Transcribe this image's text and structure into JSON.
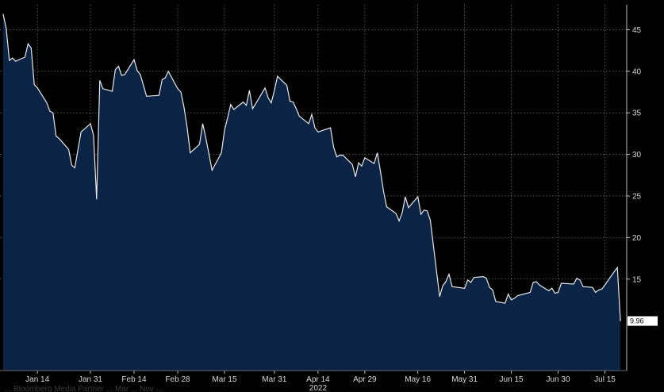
{
  "chart_data": {
    "type": "area",
    "colors": {
      "background": "#000000",
      "fill": "#0b2344",
      "line": "#e8e8e8",
      "grid": "#8c8c8c",
      "label_box": "#ffffff"
    },
    "grid": true,
    "y_axis_side": "right",
    "ylim": [
      4,
      48
    ],
    "y_ticks": [
      "15",
      "20",
      "25",
      "30",
      "35",
      "40",
      "45"
    ],
    "xlim": [
      "2022-01-02",
      "2022-07-22"
    ],
    "x_ticks": [
      {
        "date": "2022-01-14",
        "label": "Jan 14"
      },
      {
        "date": "2022-01-31",
        "label": "Jan 31"
      },
      {
        "date": "2022-02-14",
        "label": "Feb 14"
      },
      {
        "date": "2022-02-28",
        "label": "Feb 28"
      },
      {
        "date": "2022-03-15",
        "label": "Mar 15"
      },
      {
        "date": "2022-03-31",
        "label": "Mar 31"
      },
      {
        "date": "2022-04-14",
        "label": "Apr 14"
      },
      {
        "date": "2022-04-29",
        "label": "Apr 29"
      },
      {
        "date": "2022-05-16",
        "label": "May 16"
      },
      {
        "date": "2022-05-31",
        "label": "May 31"
      },
      {
        "date": "2022-06-15",
        "label": "Jun 15"
      },
      {
        "date": "2022-06-30",
        "label": "Jun 30"
      },
      {
        "date": "2022-07-15",
        "label": "Jul 15"
      }
    ],
    "year_label": "2022",
    "last_value_label": "9.96",
    "footer_caption": "... Bloomberg Media Partner ... Mar ... Nov ...",
    "series": [
      {
        "points": [
          [
            "2022-01-03",
            46.9
          ],
          [
            "2022-01-04",
            45.1
          ],
          [
            "2022-01-05",
            41.3
          ],
          [
            "2022-01-06",
            41.6
          ],
          [
            "2022-01-07",
            41.2
          ],
          [
            "2022-01-10",
            41.7
          ],
          [
            "2022-01-11",
            43.3
          ],
          [
            "2022-01-12",
            42.8
          ],
          [
            "2022-01-13",
            38.4
          ],
          [
            "2022-01-14",
            38.0
          ],
          [
            "2022-01-17",
            36.2
          ],
          [
            "2022-01-18",
            35.2
          ],
          [
            "2022-01-19",
            35.0
          ],
          [
            "2022-01-20",
            32.2
          ],
          [
            "2022-01-21",
            31.9
          ],
          [
            "2022-01-24",
            30.6
          ],
          [
            "2022-01-25",
            28.7
          ],
          [
            "2022-01-26",
            28.4
          ],
          [
            "2022-01-27",
            30.6
          ],
          [
            "2022-01-28",
            32.7
          ],
          [
            "2022-01-31",
            33.7
          ],
          [
            "2022-02-01",
            32.3
          ],
          [
            "2022-02-02",
            24.6
          ],
          [
            "2022-02-03",
            38.9
          ],
          [
            "2022-02-04",
            37.9
          ],
          [
            "2022-02-07",
            37.6
          ],
          [
            "2022-02-08",
            40.2
          ],
          [
            "2022-02-09",
            40.6
          ],
          [
            "2022-02-10",
            39.5
          ],
          [
            "2022-02-11",
            39.6
          ],
          [
            "2022-02-14",
            41.4
          ],
          [
            "2022-02-15",
            40.1
          ],
          [
            "2022-02-16",
            39.6
          ],
          [
            "2022-02-17",
            38.3
          ],
          [
            "2022-02-18",
            37.0
          ],
          [
            "2022-02-22",
            37.1
          ],
          [
            "2022-02-23",
            39.0
          ],
          [
            "2022-02-24",
            39.2
          ],
          [
            "2022-02-25",
            40.0
          ],
          [
            "2022-02-28",
            37.9
          ],
          [
            "2022-03-01",
            37.5
          ],
          [
            "2022-03-02",
            35.7
          ],
          [
            "2022-03-03",
            33.3
          ],
          [
            "2022-03-04",
            30.2
          ],
          [
            "2022-03-07",
            31.2
          ],
          [
            "2022-03-08",
            33.7
          ],
          [
            "2022-03-09",
            32.0
          ],
          [
            "2022-03-10",
            30.1
          ],
          [
            "2022-03-11",
            28.1
          ],
          [
            "2022-03-14",
            30.2
          ],
          [
            "2022-03-15",
            32.9
          ],
          [
            "2022-03-16",
            34.4
          ],
          [
            "2022-03-17",
            36.0
          ],
          [
            "2022-03-18",
            35.4
          ],
          [
            "2022-03-21",
            36.3
          ],
          [
            "2022-03-22",
            35.9
          ],
          [
            "2022-03-23",
            37.7
          ],
          [
            "2022-03-24",
            35.5
          ],
          [
            "2022-03-25",
            36.1
          ],
          [
            "2022-03-28",
            38.0
          ],
          [
            "2022-03-29",
            36.8
          ],
          [
            "2022-03-30",
            36.2
          ],
          [
            "2022-03-31",
            37.7
          ],
          [
            "2022-04-01",
            39.4
          ],
          [
            "2022-04-04",
            38.3
          ],
          [
            "2022-04-05",
            36.4
          ],
          [
            "2022-04-06",
            36.3
          ],
          [
            "2022-04-07",
            35.5
          ],
          [
            "2022-04-08",
            34.6
          ],
          [
            "2022-04-11",
            33.7
          ],
          [
            "2022-04-12",
            34.8
          ],
          [
            "2022-04-13",
            33.2
          ],
          [
            "2022-04-14",
            32.7
          ],
          [
            "2022-04-18",
            33.2
          ],
          [
            "2022-04-19",
            30.9
          ],
          [
            "2022-04-20",
            29.7
          ],
          [
            "2022-04-21",
            29.9
          ],
          [
            "2022-04-22",
            29.9
          ],
          [
            "2022-04-25",
            28.8
          ],
          [
            "2022-04-26",
            27.3
          ],
          [
            "2022-04-27",
            29.0
          ],
          [
            "2022-04-28",
            28.6
          ],
          [
            "2022-04-29",
            29.6
          ],
          [
            "2022-05-02",
            28.9
          ],
          [
            "2022-05-03",
            30.2
          ],
          [
            "2022-05-04",
            28.0
          ],
          [
            "2022-05-05",
            25.6
          ],
          [
            "2022-05-06",
            23.7
          ],
          [
            "2022-05-09",
            22.9
          ],
          [
            "2022-05-10",
            22.0
          ],
          [
            "2022-05-11",
            23.0
          ],
          [
            "2022-05-12",
            24.9
          ],
          [
            "2022-05-13",
            23.6
          ],
          [
            "2022-05-16",
            24.9
          ],
          [
            "2022-05-17",
            22.8
          ],
          [
            "2022-05-18",
            23.3
          ],
          [
            "2022-05-19",
            23.2
          ],
          [
            "2022-05-20",
            22.1
          ],
          [
            "2022-05-23",
            12.9
          ],
          [
            "2022-05-24",
            14.2
          ],
          [
            "2022-05-25",
            14.7
          ],
          [
            "2022-05-26",
            15.6
          ],
          [
            "2022-05-27",
            14.1
          ],
          [
            "2022-05-31",
            13.9
          ],
          [
            "2022-06-01",
            14.9
          ],
          [
            "2022-06-02",
            14.6
          ],
          [
            "2022-06-03",
            15.2
          ],
          [
            "2022-06-06",
            15.3
          ],
          [
            "2022-06-07",
            15.1
          ],
          [
            "2022-06-08",
            14.0
          ],
          [
            "2022-06-09",
            13.7
          ],
          [
            "2022-06-10",
            12.3
          ],
          [
            "2022-06-13",
            12.1
          ],
          [
            "2022-06-14",
            13.2
          ],
          [
            "2022-06-15",
            12.5
          ],
          [
            "2022-06-16",
            12.7
          ],
          [
            "2022-06-17",
            13.0
          ],
          [
            "2022-06-21",
            13.4
          ],
          [
            "2022-06-22",
            14.6
          ],
          [
            "2022-06-23",
            14.7
          ],
          [
            "2022-06-24",
            14.3
          ],
          [
            "2022-06-27",
            13.6
          ],
          [
            "2022-06-28",
            13.9
          ],
          [
            "2022-06-29",
            13.3
          ],
          [
            "2022-06-30",
            13.4
          ],
          [
            "2022-07-01",
            14.5
          ],
          [
            "2022-07-05",
            14.4
          ],
          [
            "2022-07-06",
            15.1
          ],
          [
            "2022-07-07",
            14.9
          ],
          [
            "2022-07-08",
            14.1
          ],
          [
            "2022-07-11",
            14.0
          ],
          [
            "2022-07-12",
            13.4
          ],
          [
            "2022-07-13",
            13.7
          ],
          [
            "2022-07-14",
            13.8
          ],
          [
            "2022-07-15",
            14.3
          ],
          [
            "2022-07-18",
            15.9
          ],
          [
            "2022-07-19",
            16.4
          ],
          [
            "2022-07-20",
            9.96
          ]
        ]
      }
    ]
  }
}
